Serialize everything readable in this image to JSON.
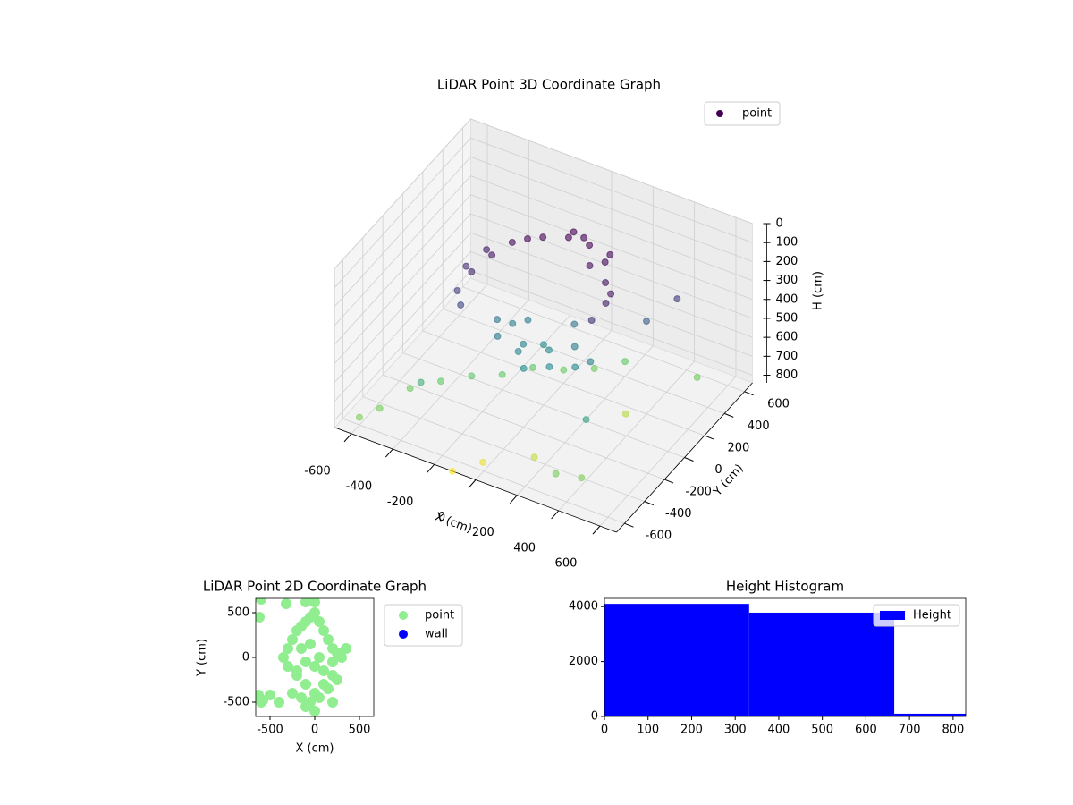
{
  "chart_data": [
    {
      "type": "scatter3d",
      "title": "LiDAR Point 3D Coordinate Graph",
      "xlabel": "X (cm)",
      "ylabel": "Y (cm)",
      "zlabel": "H (cm)",
      "colormap": "viridis",
      "legend": "upper right",
      "series": [
        {
          "name": "point",
          "x": [
            -300,
            -250,
            -200,
            -100,
            0,
            100,
            200,
            250,
            300,
            280,
            -320,
            -280,
            150,
            50,
            -150,
            -50,
            50,
            150,
            0,
            -100,
            100,
            200,
            -200,
            0,
            400,
            500,
            350,
            -400,
            -500,
            -400,
            -300,
            -200,
            -100,
            0,
            100,
            300,
            400,
            500,
            -600,
            -550,
            200,
            -100,
            100,
            -200,
            300,
            -350,
            -300,
            -150,
            0,
            200,
            300,
            -50,
            100,
            -150,
            250
          ],
          "y": [
            -100,
            0,
            100,
            200,
            250,
            250,
            200,
            100,
            0,
            -100,
            -200,
            -250,
            150,
            300,
            -150,
            -100,
            -50,
            0,
            0,
            50,
            100,
            -100,
            -50,
            -200,
            200,
            300,
            -300,
            -400,
            -300,
            -200,
            -100,
            0,
            100,
            200,
            300,
            -500,
            -450,
            500,
            -600,
            -500,
            400,
            -400,
            -300,
            -500,
            200,
            -50,
            50,
            150,
            300,
            250,
            50,
            -150,
            -150,
            0,
            -50
          ],
          "z": [
            200,
            150,
            120,
            110,
            100,
            100,
            120,
            150,
            180,
            220,
            250,
            280,
            130,
            110,
            450,
            480,
            500,
            470,
            520,
            460,
            430,
            500,
            440,
            530,
            350,
            250,
            600,
            650,
            780,
            760,
            750,
            760,
            740,
            770,
            780,
            790,
            800,
            780,
            800,
            790,
            760,
            950,
            900,
            980,
            880,
            220,
            170,
            110,
            100,
            110,
            160,
            490,
            510,
            470,
            480
          ]
        }
      ],
      "xlim": [
        -680,
        680
      ],
      "ylim": [
        -680,
        680
      ],
      "zlim": [
        840,
        0
      ],
      "xticks": [
        -600,
        -400,
        -200,
        0,
        200,
        400,
        600
      ],
      "yticks": [
        -600,
        -400,
        -200,
        0,
        200,
        400,
        600
      ],
      "zticks": [
        0,
        100,
        200,
        300,
        400,
        500,
        600,
        700,
        800
      ],
      "grid": true
    },
    {
      "type": "scatter",
      "title": "LiDAR Point 2D Coordinate Graph",
      "xlabel": "X (cm)",
      "ylabel": "Y (cm)",
      "legend": "outside right",
      "series": [
        {
          "name": "point",
          "color": "#90ee90",
          "x": [
            -350,
            -300,
            -250,
            -200,
            -150,
            -100,
            -50,
            0,
            50,
            100,
            150,
            200,
            250,
            300,
            -300,
            -200,
            -100,
            0,
            100,
            200,
            -250,
            -150,
            -50,
            50,
            150,
            250,
            -200,
            -100,
            0,
            100,
            200,
            -150,
            -50,
            50,
            -100,
            0,
            -600,
            -620,
            -580,
            -400,
            -320,
            -100,
            0,
            200,
            -500,
            350,
            -630,
            -600
          ],
          "y": [
            0,
            100,
            200,
            300,
            350,
            400,
            450,
            500,
            400,
            300,
            200,
            100,
            50,
            0,
            -100,
            -200,
            -300,
            -400,
            -300,
            -200,
            -400,
            -450,
            -500,
            -450,
            -350,
            -250,
            -150,
            -50,
            -100,
            -150,
            -50,
            100,
            150,
            0,
            -550,
            -600,
            650,
            450,
            -480,
            -500,
            600,
            620,
            620,
            -500,
            -420,
            100,
            -420,
            -500
          ]
        },
        {
          "name": "wall",
          "color": "#0000ff",
          "x": [],
          "y": []
        }
      ],
      "xlim": [
        -660,
        660
      ],
      "ylim": [
        -660,
        660
      ],
      "xticks": [
        -500,
        0,
        500
      ],
      "yticks": [
        -500,
        0,
        500
      ]
    },
    {
      "type": "histogram",
      "title": "Height Histogram",
      "legend": "upper right",
      "series": [
        {
          "name": "Height",
          "color": "#0000ff",
          "bins": [
            0,
            332,
            665,
            998
          ],
          "counts": [
            4100,
            3780,
            100
          ]
        }
      ],
      "xlim": [
        0,
        829
      ],
      "ylim": [
        0,
        4300
      ],
      "xticks": [
        0,
        100,
        200,
        300,
        400,
        500,
        600,
        700,
        800
      ],
      "yticks": [
        0,
        2000,
        4000
      ]
    }
  ]
}
